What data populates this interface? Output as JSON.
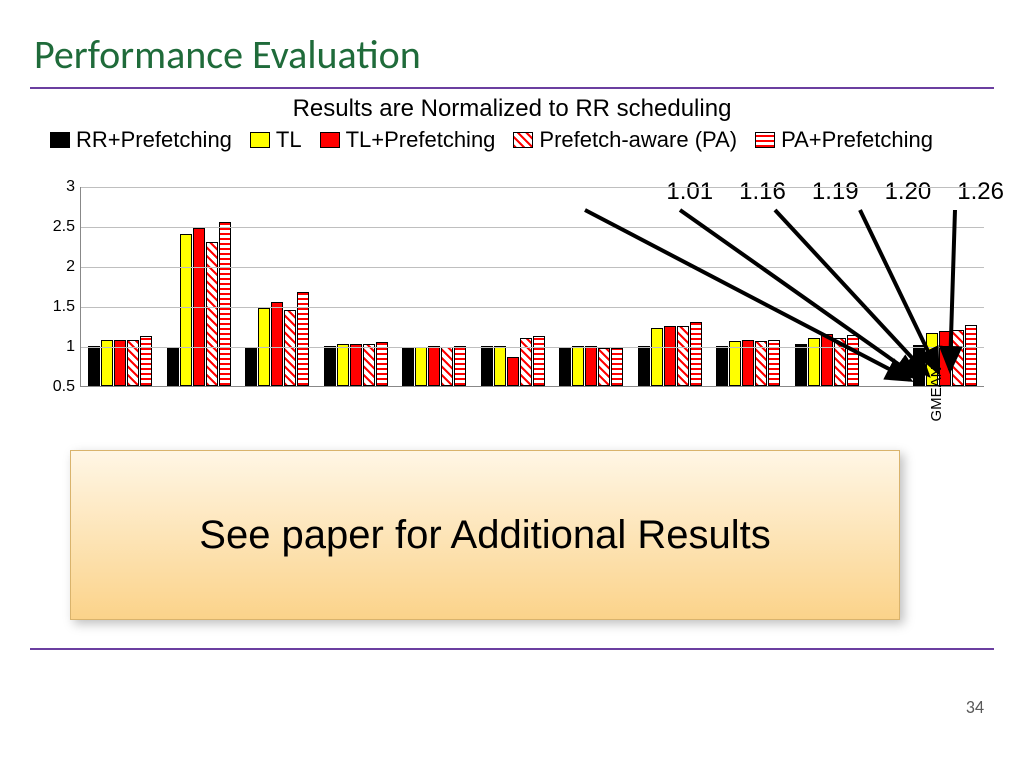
{
  "slide": {
    "title": "Performance Evaluation",
    "subtitle": "Results are Normalized to RR scheduling",
    "page_number": "34",
    "title_color": "#1f6b3a",
    "divider_color": "#6b3fa0"
  },
  "legend": [
    {
      "label": "RR+Prefetching",
      "fill": "#000000",
      "pattern": "solid"
    },
    {
      "label": "TL",
      "fill": "#ffff00",
      "pattern": "solid"
    },
    {
      "label": "TL+Prefetching",
      "fill": "#ff0000",
      "pattern": "solid"
    },
    {
      "label": "Prefetch-aware (PA)",
      "fill": "#ffffff",
      "pattern": "diag-red"
    },
    {
      "label": "PA+Prefetching",
      "fill": "#ffffff",
      "pattern": "horiz-red"
    }
  ],
  "annotations": [
    "1.01",
    "1.16",
    "1.19",
    "1.20",
    "1.26"
  ],
  "chart": {
    "type": "grouped-bar",
    "ylim": [
      0.5,
      3.0
    ],
    "ytick_step": 0.5,
    "yticks": [
      "0.5",
      "1",
      "1.5",
      "2",
      "2.5",
      "3"
    ],
    "grid_color": "#bfbfbf",
    "axis_color": "#888888",
    "bar_border": "#000000",
    "series_styles": [
      {
        "name": "RR+Prefetching",
        "fill": "#000000",
        "pattern": "solid"
      },
      {
        "name": "TL",
        "fill": "#ffff00",
        "pattern": "solid"
      },
      {
        "name": "TL+Prefetching",
        "fill": "#ff0000",
        "pattern": "solid"
      },
      {
        "name": "Prefetch-aware (PA)",
        "fill": "#ffffff",
        "pattern": "diag-red"
      },
      {
        "name": "PA+Prefetching",
        "fill": "#ffffff",
        "pattern": "horiz-red"
      }
    ],
    "groups": [
      {
        "label": "",
        "values": [
          1.0,
          1.08,
          1.08,
          1.08,
          1.12
        ]
      },
      {
        "label": "",
        "values": [
          0.97,
          2.4,
          2.48,
          2.3,
          2.55
        ]
      },
      {
        "label": "",
        "values": [
          0.97,
          1.48,
          1.55,
          1.45,
          1.68
        ]
      },
      {
        "label": "",
        "values": [
          1.0,
          1.02,
          1.03,
          1.02,
          1.05
        ]
      },
      {
        "label": "",
        "values": [
          0.99,
          0.99,
          1.0,
          0.99,
          1.0
        ]
      },
      {
        "label": "",
        "values": [
          1.0,
          1.0,
          0.86,
          1.1,
          1.13
        ]
      },
      {
        "label": "",
        "values": [
          0.98,
          1.0,
          1.0,
          0.97,
          0.98
        ]
      },
      {
        "label": "",
        "values": [
          1.0,
          1.22,
          1.25,
          1.25,
          1.3
        ]
      },
      {
        "label": "",
        "values": [
          1.0,
          1.06,
          1.08,
          1.06,
          1.08
        ]
      },
      {
        "label": "",
        "values": [
          1.03,
          1.1,
          1.15,
          1.1,
          1.14
        ]
      },
      {
        "label": "GMEAN",
        "values": [
          1.01,
          1.16,
          1.19,
          1.2,
          1.26
        ],
        "labelRotate": true
      }
    ]
  },
  "overlay": {
    "text": "See paper for Additional Results",
    "gradient_from": "#fff6e5",
    "gradient_to": "#fbd38a",
    "border_color": "#d9b36c"
  },
  "arrows": {
    "color": "#000000",
    "stroke_width": 4,
    "targets_note": "five arrows converging from annotation labels toward GMEAN bar cluster"
  }
}
